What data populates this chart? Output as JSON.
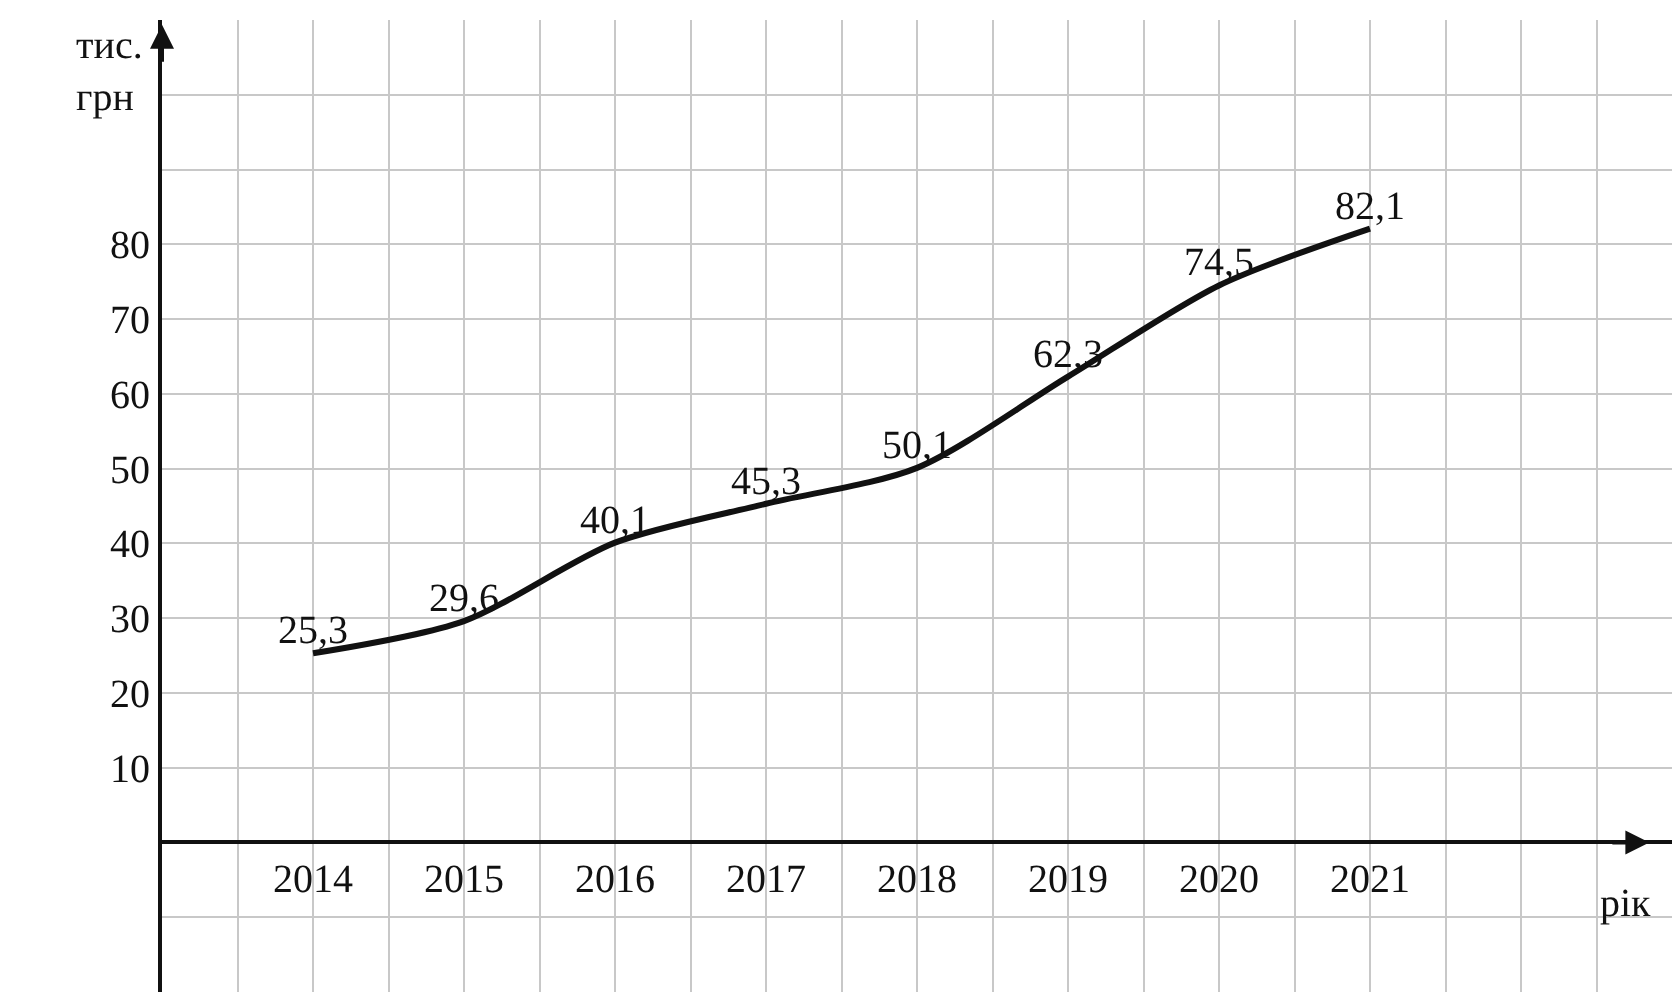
{
  "chart_data": {
    "type": "line",
    "xlabel": "рік",
    "ylabel": "тис. грн",
    "x": [
      2014,
      2015,
      2016,
      2017,
      2018,
      2019,
      2020,
      2021
    ],
    "series": [
      {
        "color": "#111111",
        "values": [
          25.3,
          29.6,
          40.1,
          45.3,
          50.1,
          62.3,
          74.5,
          82.1
        ],
        "value_labels": [
          "25,3",
          "29,6",
          "40,1",
          "45,3",
          "50,1",
          "62,3",
          "74,5",
          "82,1"
        ]
      }
    ],
    "xlim": [
      2013,
      2023
    ],
    "ylim": [
      -20,
      110
    ],
    "xticks": [
      2014,
      2015,
      2016,
      2017,
      2018,
      2019,
      2020,
      2021
    ],
    "yticks": [
      10,
      20,
      30,
      40,
      50,
      60,
      70,
      80
    ],
    "grid": true,
    "marker": "none",
    "line_style": "solid"
  }
}
